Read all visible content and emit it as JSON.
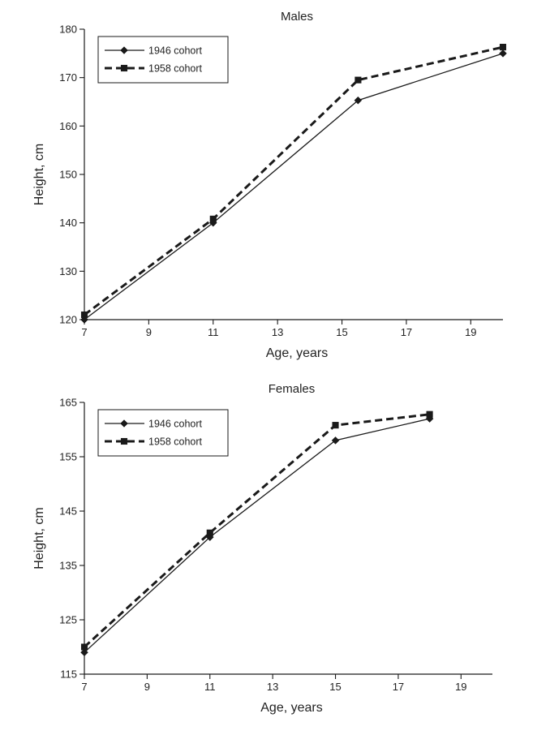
{
  "chart_data": [
    {
      "type": "line",
      "title": "Males",
      "xlabel": "Age, years",
      "ylabel": "Height, cm",
      "xlim": [
        7,
        20
      ],
      "ylim": [
        120,
        180
      ],
      "xticks": [
        7,
        9,
        11,
        13,
        15,
        17,
        19
      ],
      "yticks": [
        120,
        130,
        140,
        150,
        160,
        170,
        180
      ],
      "grid": false,
      "legend_position": "top-left",
      "series": [
        {
          "name": "1946 cohort",
          "style": "solid",
          "marker": "diamond",
          "x": [
            7,
            11,
            15.5,
            20
          ],
          "y": [
            120,
            140,
            165.3,
            175
          ]
        },
        {
          "name": "1958 cohort",
          "style": "dashed",
          "marker": "square",
          "x": [
            7,
            11,
            15.5,
            20
          ],
          "y": [
            121,
            140.8,
            169.5,
            176.3
          ]
        }
      ]
    },
    {
      "type": "line",
      "title": "Females",
      "xlabel": "Age, years",
      "ylabel": "Height, cm",
      "xlim": [
        7,
        20
      ],
      "ylim": [
        115,
        165
      ],
      "xticks": [
        7,
        9,
        11,
        13,
        15,
        17,
        19
      ],
      "yticks": [
        115,
        125,
        135,
        145,
        155,
        165
      ],
      "grid": false,
      "legend_position": "top-left",
      "series": [
        {
          "name": "1946 cohort",
          "style": "solid",
          "marker": "diamond",
          "x": [
            7,
            11,
            15,
            18
          ],
          "y": [
            119,
            140.2,
            158,
            162
          ]
        },
        {
          "name": "1958 cohort",
          "style": "dashed",
          "marker": "square",
          "x": [
            7,
            11,
            15,
            18
          ],
          "y": [
            120,
            141,
            160.8,
            162.8
          ]
        }
      ]
    }
  ]
}
